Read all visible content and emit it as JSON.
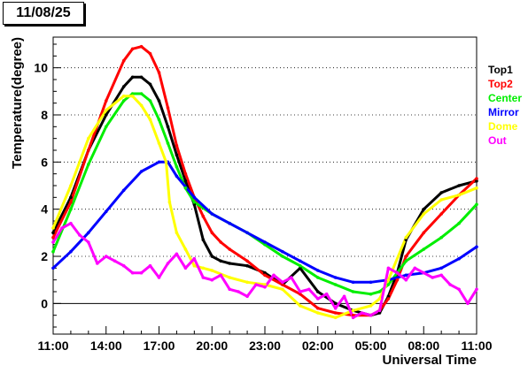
{
  "header": {
    "date_label": "11/08/25"
  },
  "chart_data": {
    "type": "scatter",
    "title": "",
    "xlabel": "Universal Time",
    "ylabel": "Temperature(degree)",
    "x_tick_labels": [
      "11:00",
      "14:00",
      "17:00",
      "20:00",
      "23:00",
      "02:00",
      "05:00",
      "08:00",
      "11:00"
    ],
    "xlim": [
      0,
      24
    ],
    "x_units": "hours since 11:00 UT",
    "ylim": [
      -1.3,
      11.3
    ],
    "y_ticks": [
      0,
      2,
      4,
      6,
      8,
      10
    ],
    "grid": {
      "x": false,
      "y": true,
      "zero_line": true
    },
    "legend_position": "right",
    "series": [
      {
        "name": "Top1",
        "color": "#000000",
        "x": [
          0,
          1,
          2,
          3,
          4,
          4.5,
          5,
          5.5,
          6,
          6.5,
          7,
          7.5,
          8,
          8.5,
          9,
          9.5,
          10,
          11,
          12,
          13,
          14,
          15,
          16,
          17,
          18,
          18.5,
          19,
          19.5,
          20,
          21,
          22,
          23,
          24
        ],
        "y": [
          3.0,
          4.5,
          6.5,
          8.0,
          9.2,
          9.6,
          9.6,
          9.3,
          8.6,
          7.5,
          6.3,
          5.2,
          4.2,
          2.7,
          2.0,
          1.8,
          1.7,
          1.6,
          1.3,
          0.8,
          1.5,
          0.5,
          0.0,
          -0.3,
          -0.5,
          -0.4,
          0.3,
          1.3,
          2.7,
          4.0,
          4.7,
          5.0,
          5.2
        ]
      },
      {
        "name": "Top2",
        "color": "#ff0000",
        "x": [
          0,
          1,
          2,
          3,
          4,
          4.5,
          5,
          5.5,
          6,
          6.5,
          7,
          7.5,
          8,
          8.5,
          9,
          9.5,
          10,
          11,
          12,
          13,
          14,
          15,
          16,
          17,
          18,
          18.5,
          19,
          19.5,
          20,
          21,
          22,
          23,
          24
        ],
        "y": [
          2.8,
          4.3,
          6.5,
          8.6,
          10.3,
          10.8,
          10.9,
          10.6,
          9.8,
          8.3,
          6.7,
          5.5,
          4.5,
          3.7,
          3.0,
          2.6,
          2.3,
          1.8,
          1.2,
          0.8,
          0.4,
          -0.2,
          -0.4,
          -0.5,
          -0.5,
          -0.3,
          0.2,
          1.0,
          2.0,
          3.0,
          3.8,
          4.6,
          5.3
        ]
      },
      {
        "name": "Center",
        "color": "#00ee00",
        "x": [
          0,
          1,
          2,
          3,
          4,
          4.5,
          5,
          5.5,
          6,
          6.5,
          7,
          7.5,
          8,
          9,
          10,
          11,
          12,
          13,
          14,
          15,
          16,
          17,
          18,
          18.5,
          19,
          19.5,
          20,
          21,
          22,
          23,
          24
        ],
        "y": [
          2.2,
          4.0,
          5.9,
          7.5,
          8.6,
          8.9,
          8.9,
          8.6,
          7.8,
          6.8,
          5.8,
          4.9,
          4.3,
          3.8,
          3.4,
          3.0,
          2.5,
          2.0,
          1.6,
          1.1,
          0.8,
          0.5,
          0.4,
          0.5,
          0.8,
          1.3,
          1.8,
          2.3,
          2.8,
          3.4,
          4.2
        ]
      },
      {
        "name": "Mirror",
        "color": "#0000ff",
        "x": [
          0,
          1,
          2,
          3,
          4,
          5,
          6,
          6.5,
          7,
          8,
          9,
          10,
          11,
          12,
          13,
          14,
          15,
          16,
          17,
          18,
          19,
          20,
          21,
          22,
          23,
          24
        ],
        "y": [
          1.5,
          2.2,
          3.0,
          3.9,
          4.8,
          5.6,
          6.0,
          6.0,
          5.4,
          4.5,
          3.8,
          3.4,
          3.0,
          2.6,
          2.2,
          1.8,
          1.4,
          1.1,
          0.9,
          0.9,
          1.0,
          1.2,
          1.3,
          1.5,
          1.9,
          2.4
        ]
      },
      {
        "name": "Dome",
        "color": "#ffff00",
        "x": [
          0,
          1,
          2,
          3,
          4,
          4.5,
          5,
          5.5,
          6,
          6.4,
          6.6,
          7,
          7.5,
          8,
          8.5,
          9,
          10,
          11,
          12,
          13,
          14,
          15,
          16,
          17,
          18,
          18.5,
          19,
          20,
          21,
          22,
          23,
          24
        ],
        "y": [
          3.2,
          5.0,
          7.0,
          8.2,
          8.8,
          8.8,
          8.4,
          7.8,
          6.8,
          6.0,
          4.3,
          3.0,
          2.3,
          1.6,
          1.5,
          1.4,
          1.1,
          0.9,
          0.8,
          0.6,
          -0.1,
          -0.4,
          -0.6,
          -0.3,
          -0.1,
          0.2,
          1.0,
          2.8,
          3.8,
          4.4,
          4.6,
          4.9
        ]
      },
      {
        "name": "Out",
        "color": "#ff00ff",
        "x": [
          0,
          0.5,
          1,
          1.5,
          2,
          2.5,
          3,
          3.5,
          4,
          4.5,
          5,
          5.5,
          6,
          6.5,
          7,
          7.5,
          8,
          8.5,
          9,
          9.5,
          10,
          10.5,
          11,
          11.5,
          12,
          12.5,
          13,
          13.5,
          14,
          14.5,
          15,
          15.5,
          16,
          16.5,
          17,
          17.5,
          18,
          18.5,
          19,
          19.5,
          20,
          20.5,
          21,
          21.5,
          22,
          22.5,
          23,
          23.5,
          24
        ],
        "y": [
          2.6,
          3.2,
          3.4,
          2.9,
          2.6,
          1.7,
          2.0,
          1.8,
          1.6,
          1.3,
          1.3,
          1.6,
          1.1,
          1.7,
          2.1,
          1.5,
          1.9,
          1.1,
          1.0,
          1.2,
          0.6,
          0.5,
          0.3,
          0.8,
          0.7,
          1.2,
          0.9,
          1.1,
          0.5,
          0.6,
          0.2,
          0.4,
          -0.2,
          0.3,
          -0.6,
          -0.4,
          -0.5,
          -0.3,
          1.5,
          1.3,
          1.0,
          1.5,
          1.3,
          1.1,
          1.2,
          0.8,
          0.6,
          0.0,
          0.6
        ]
      }
    ]
  }
}
